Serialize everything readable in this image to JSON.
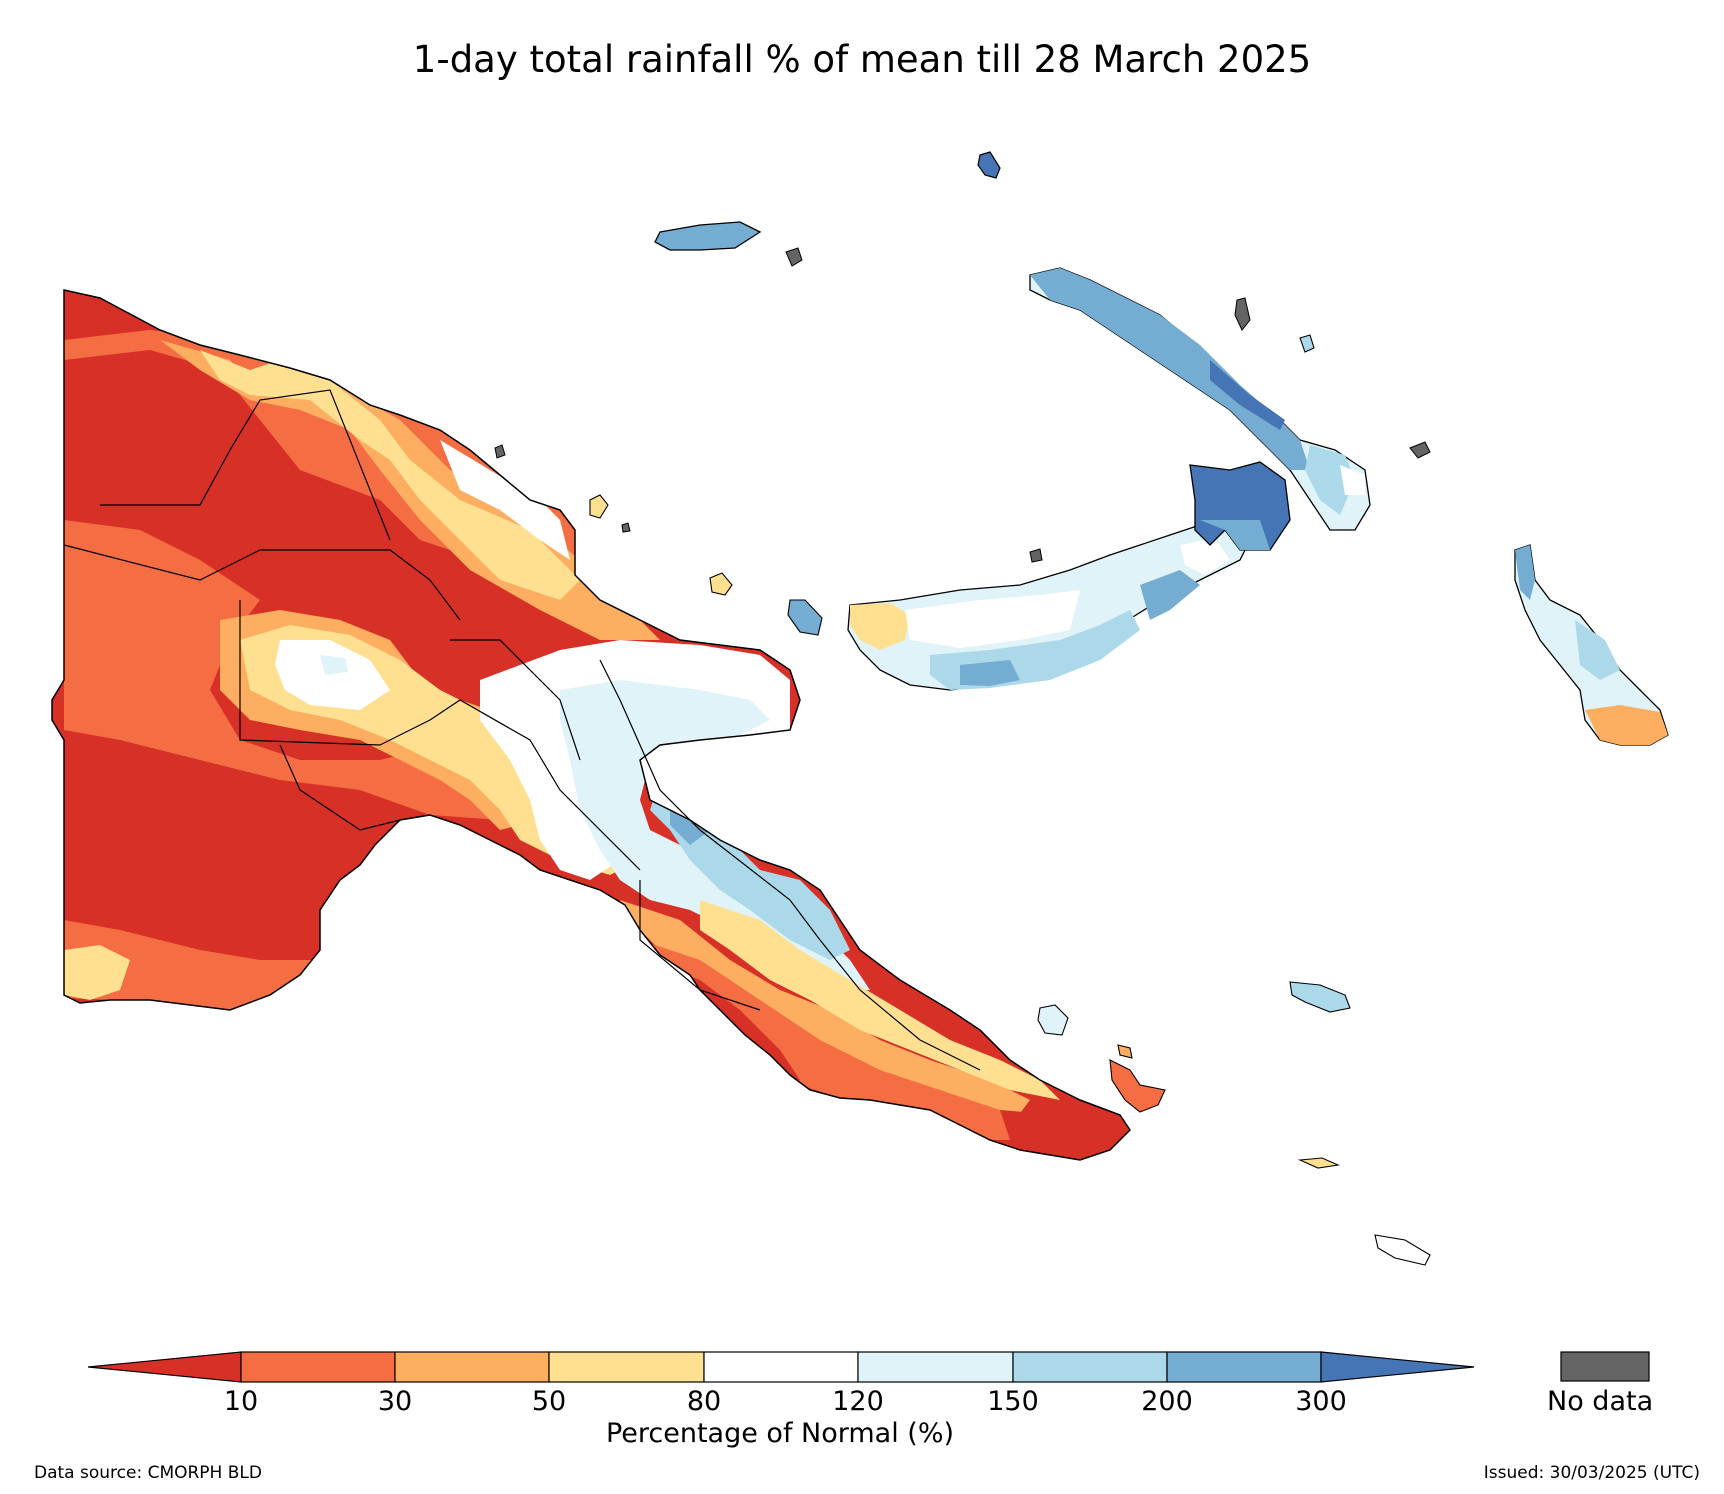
{
  "title": "1-day total rainfall % of mean till 28 March 2025",
  "colors": {
    "lt10": "#d73027",
    "c10_30": "#f46d43",
    "c30_50": "#fdae61",
    "c50_80": "#fee090",
    "c80_120": "#ffffff",
    "c120_150": "#e0f3f8",
    "c150_200": "#abd9e9",
    "c200_300": "#74add1",
    "gt300": "#4575b4",
    "no_data": "#646464"
  },
  "colorbar": {
    "ticks": [
      "10",
      "30",
      "50",
      "80",
      "120",
      "150",
      "200",
      "300"
    ],
    "label": "Percentage of Normal (%)",
    "no_data_label": "No data"
  },
  "footer": {
    "source": "Data source: CMORPH BLD",
    "issued": "Issued: 30/03/2025 (UTC)"
  }
}
